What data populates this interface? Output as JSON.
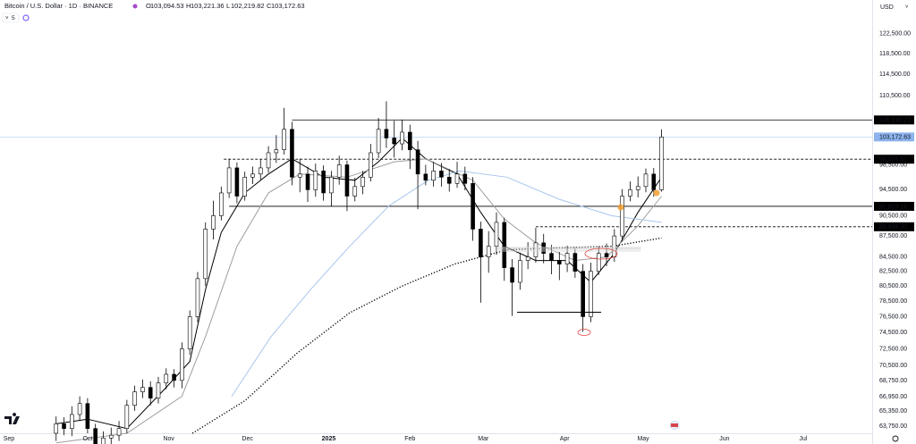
{
  "chart_data": {
    "type": "candlestick",
    "title": "Bitcoin / U.S. Dollar · 1D · BINANCE",
    "ohlc_labels": [
      "O",
      "H",
      "L",
      "C"
    ],
    "ohlc_values": [
      "103,094.53",
      "103,221.36",
      "102,219.82",
      "103,172.63"
    ],
    "indicator_count": "5",
    "currency": "USD",
    "log_scale": true,
    "grid": false,
    "up_color": "#ffffff",
    "down_color": "#000000",
    "xlim": [
      -3.41,
      329.35
    ],
    "ylim": [
      63000,
      129600
    ],
    "xticks": [
      {
        "value": 0,
        "label": "Sep"
      },
      {
        "value": 30,
        "label": "Oct"
      },
      {
        "value": 61,
        "label": "Nov"
      },
      {
        "value": 91,
        "label": "Dec"
      },
      {
        "value": 122,
        "label": "2025"
      },
      {
        "value": 153,
        "label": "Feb"
      },
      {
        "value": 181,
        "label": "Mar"
      },
      {
        "value": 212,
        "label": "Apr"
      },
      {
        "value": 242,
        "label": "May"
      },
      {
        "value": 273,
        "label": "Jun"
      },
      {
        "value": 303,
        "label": "Jul"
      }
    ],
    "yticks": [
      {
        "value": 122500,
        "label": "122,500.00"
      },
      {
        "value": 118500,
        "label": "118,500.00"
      },
      {
        "value": 114500,
        "label": "114,500.00"
      },
      {
        "value": 110500,
        "label": "110,500.00"
      },
      {
        "value": 98500,
        "label": "98,500.00"
      },
      {
        "value": 94500,
        "label": "94,500.00"
      },
      {
        "value": 90500,
        "label": "90,500.00"
      },
      {
        "value": 87500,
        "label": "87,500.00"
      },
      {
        "value": 84500,
        "label": "84,500.00"
      },
      {
        "value": 82500,
        "label": "82,500.00"
      },
      {
        "value": 80500,
        "label": "80,500.00"
      },
      {
        "value": 78500,
        "label": "78,500.00"
      },
      {
        "value": 76500,
        "label": "76,500.00"
      },
      {
        "value": 74500,
        "label": "74,500.00"
      },
      {
        "value": 72500,
        "label": "72,500.00"
      },
      {
        "value": 70500,
        "label": "70,500.00"
      },
      {
        "value": 68750,
        "label": "68,750.00"
      },
      {
        "value": 66950,
        "label": "66,950.00"
      },
      {
        "value": 65350,
        "label": "65,350.00"
      },
      {
        "value": 63750,
        "label": "63,750.00"
      }
    ],
    "x": [
      18,
      21,
      24,
      27,
      30,
      33,
      36,
      39,
      42,
      45,
      48,
      51,
      54,
      57,
      60,
      63,
      66,
      69,
      72,
      75,
      78,
      81,
      84,
      87,
      90,
      93,
      96,
      99,
      102,
      105,
      108,
      111,
      114,
      117,
      120,
      123,
      126,
      129,
      132,
      135,
      138,
      141,
      144,
      147,
      150,
      153,
      156,
      159,
      162,
      165,
      168,
      171,
      174,
      177,
      180,
      183,
      186,
      189,
      192,
      195,
      198,
      201,
      204,
      207,
      210,
      213,
      216,
      219,
      222,
      225,
      228,
      231,
      234,
      237,
      240,
      243,
      246,
      249
    ],
    "open": [
      63000,
      64000,
      63500,
      65000,
      66200,
      63500,
      61500,
      62500,
      62800,
      63500,
      66000,
      67500,
      68000,
      66800,
      68500,
      69500,
      68800,
      72500,
      76500,
      81500,
      88500,
      90500,
      94000,
      98000,
      93500,
      96500,
      97000,
      98000,
      100500,
      101000,
      104500,
      96500,
      97000,
      94500,
      97500,
      94000,
      96500,
      98500,
      93500,
      95000,
      96500,
      100500,
      104500,
      103000,
      102000,
      104000,
      101000,
      97000,
      96000,
      97500,
      96500,
      95500,
      97000,
      95500,
      88500,
      84500,
      86000,
      89500,
      83000,
      81000,
      84000,
      84500,
      86500,
      85000,
      84000,
      83500,
      85000,
      82500,
      76500,
      82500,
      85000,
      84500,
      87500,
      93500,
      94500,
      95000,
      97000,
      94500
    ],
    "high": [
      64800,
      64700,
      65900,
      67000,
      66800,
      64000,
      63200,
      63600,
      64300,
      66600,
      68200,
      68900,
      68700,
      69200,
      70200,
      70100,
      73300,
      77300,
      82400,
      89500,
      92800,
      95000,
      99500,
      98900,
      97400,
      98200,
      99400,
      101600,
      103500,
      108300,
      105800,
      99500,
      98200,
      98700,
      98400,
      97500,
      100000,
      99200,
      96400,
      97500,
      102000,
      106500,
      109500,
      106000,
      106200,
      105300,
      102500,
      98500,
      99000,
      98800,
      97800,
      99000,
      98200,
      96500,
      89600,
      88200,
      91000,
      90200,
      84200,
      85100,
      86600,
      88700,
      87800,
      86200,
      85200,
      86100,
      85900,
      83500,
      83700,
      86000,
      86400,
      88500,
      94600,
      95800,
      96600,
      97900,
      98000,
      104500
    ],
    "low": [
      62200,
      62800,
      62700,
      64300,
      63000,
      60800,
      60900,
      61800,
      62200,
      63000,
      65400,
      66800,
      66000,
      66200,
      67800,
      68000,
      67900,
      71800,
      75800,
      80500,
      87000,
      89800,
      93200,
      92400,
      92800,
      95400,
      96100,
      97200,
      98800,
      100200,
      95200,
      94100,
      92600,
      93400,
      92800,
      91900,
      95300,
      91200,
      92700,
      93800,
      95800,
      99600,
      101300,
      99700,
      100900,
      97800,
      91500,
      95200,
      95000,
      95000,
      94200,
      94800,
      94400,
      86800,
      78300,
      82300,
      84800,
      81200,
      76600,
      80000,
      82800,
      83700,
      83600,
      82100,
      81300,
      82400,
      81600,
      74600,
      75800,
      82000,
      83200,
      83800,
      86800,
      92700,
      93300,
      94100,
      93400,
      94200
    ],
    "close": [
      64000,
      63500,
      65000,
      66200,
      63500,
      61500,
      62500,
      62800,
      63500,
      66000,
      67500,
      68000,
      66800,
      68500,
      69500,
      68800,
      72500,
      76500,
      81500,
      88500,
      90500,
      94000,
      98000,
      93500,
      96500,
      97000,
      98000,
      100500,
      101000,
      104500,
      96500,
      97000,
      94500,
      97500,
      94000,
      96500,
      98500,
      93500,
      95000,
      96500,
      100500,
      104500,
      103000,
      102000,
      104000,
      101000,
      97000,
      96000,
      97500,
      96500,
      95500,
      97000,
      95500,
      88500,
      84500,
      86000,
      89500,
      83000,
      81000,
      84000,
      84500,
      86500,
      85000,
      84000,
      83500,
      85000,
      82500,
      76500,
      82500,
      85000,
      84500,
      87500,
      93500,
      94500,
      95000,
      97000,
      94500,
      103172.63
    ],
    "series": [
      {
        "color": "#000000",
        "style": "solid",
        "x": [
          18,
          30,
          45,
          60,
          69,
          75,
          81,
          90,
          99,
          108,
          120,
          132,
          141,
          150,
          159,
          171,
          180,
          189,
          201,
          213,
          222,
          231,
          240,
          249
        ],
        "values": [
          64000,
          64500,
          63500,
          68000,
          71000,
          80000,
          88000,
          94000,
          97000,
          99500,
          96500,
          96000,
          99000,
          103000,
          99500,
          97000,
          91000,
          86000,
          84000,
          84000,
          81000,
          85000,
          91000,
          96500
        ]
      },
      {
        "color": "#9e9e9e",
        "style": "solid",
        "x": [
          18,
          45,
          66,
          75,
          87,
          99,
          111,
          129,
          147,
          159,
          177,
          189,
          201,
          216,
          228,
          240,
          249
        ],
        "values": [
          62000,
          63000,
          67000,
          74000,
          86000,
          94000,
          97000,
          96500,
          99000,
          99500,
          96000,
          90000,
          86500,
          84000,
          84500,
          89000,
          93500
        ]
      },
      {
        "color": "#a9c6ec",
        "style": "solid",
        "x": [
          85,
          100,
          115,
          130,
          145,
          160,
          172,
          190,
          210,
          230,
          249
        ],
        "values": [
          67000,
          74000,
          80000,
          86000,
          92000,
          96000,
          97500,
          96500,
          93000,
          90500,
          89500
        ]
      },
      {
        "color": "#000000",
        "style": "dotted",
        "x": [
          70,
          90,
          110,
          130,
          150,
          170,
          190,
          210,
          230,
          249
        ],
        "values": [
          63000,
          66500,
          72000,
          77000,
          80500,
          83500,
          85500,
          85800,
          86000,
          87200
        ]
      }
    ],
    "price_lines": [
      {
        "value": 106140.22,
        "label": "106,140.22",
        "style": "solid",
        "from": 108
      },
      {
        "value": 99425.51,
        "label": "99,425.51",
        "style": "dashed",
        "from": 82
      },
      {
        "value": 91923.16,
        "label": "91,923.16",
        "style": "solid",
        "from": 84
      },
      {
        "value": 88849.3,
        "label": "88,849.30",
        "style": "dashed",
        "from": 201
      }
    ],
    "last_price": {
      "value": 103172.63,
      "label": "103,172.63",
      "color": "#8db4ee"
    }
  }
}
